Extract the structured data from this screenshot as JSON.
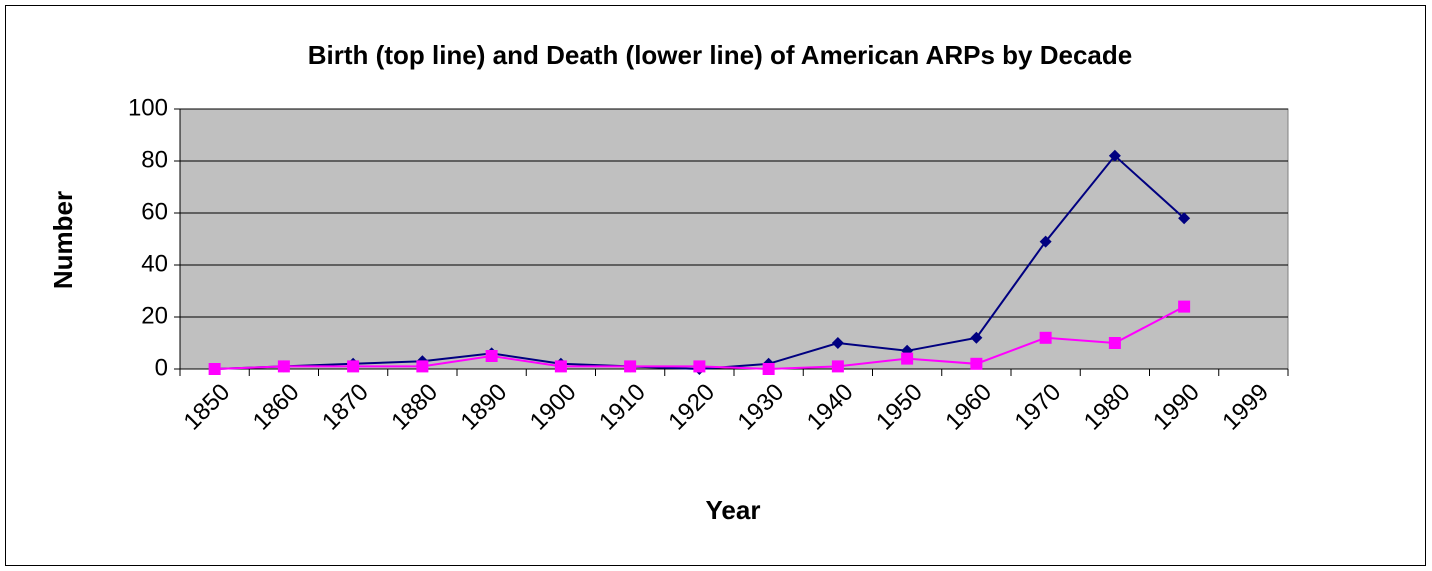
{
  "chart_data": {
    "type": "line",
    "title": "Birth (top line) and Death (lower line) of American ARPs by Decade",
    "x_label": "Year",
    "y_label": "Number",
    "categories": [
      "1850",
      "1860",
      "1870",
      "1880",
      "1890",
      "1900",
      "1910",
      "1920",
      "1930",
      "1940",
      "1950",
      "1960",
      "1970",
      "1980",
      "1990",
      "1999"
    ],
    "series": [
      {
        "color": "#000080",
        "marker": "diamond",
        "values": [
          0,
          1,
          2,
          3,
          6,
          2,
          1,
          0,
          2,
          10,
          7,
          12,
          49,
          82,
          58,
          null
        ]
      },
      {
        "color": "#ff00ff",
        "marker": "square",
        "values": [
          0,
          1,
          1,
          1,
          5,
          1,
          1,
          1,
          0,
          1,
          4,
          2,
          12,
          10,
          24,
          null
        ]
      }
    ],
    "ylim": [
      0,
      100
    ],
    "yticks": [
      0,
      20,
      40,
      60,
      80,
      100
    ],
    "grid": true,
    "plot_background": "#c0c0c0"
  }
}
